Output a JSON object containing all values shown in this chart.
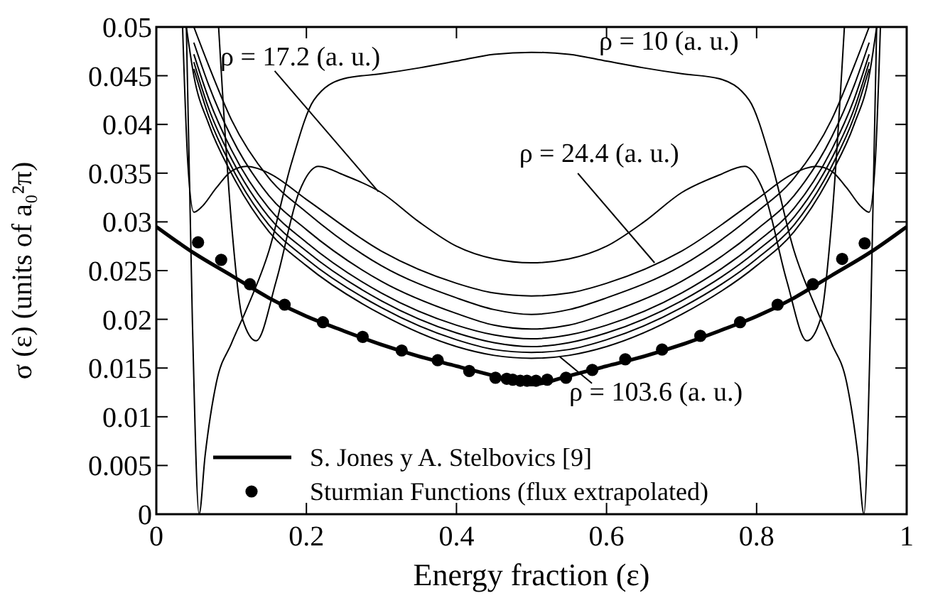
{
  "chart_data": {
    "type": "line",
    "xlabel": "Energy fraction (ε)",
    "ylabel": "σ (ε)  (units of a₀²π)",
    "xlim": [
      0,
      1
    ],
    "ylim": [
      0,
      0.05
    ],
    "xticks": [
      0,
      0.2,
      0.4,
      0.6,
      0.8,
      1
    ],
    "yticks": [
      0,
      0.005,
      0.01,
      0.015,
      0.02,
      0.025,
      0.03,
      0.035,
      0.04,
      0.045,
      0.05
    ],
    "grid": false,
    "legend": "bottom left",
    "series": [
      {
        "type": "line",
        "color": "#000000",
        "x": [
          0.05,
          0.07,
          0.1,
          0.15,
          0.2,
          0.3,
          0.4,
          0.45,
          0.5,
          0.55,
          0.6,
          0.7,
          0.8,
          0.85,
          0.9,
          0.93,
          0.95
        ],
        "values": [
          0.05,
          0.046,
          0.0405,
          0.0345,
          0.031,
          0.0255,
          0.0222,
          0.021,
          0.0205,
          0.021,
          0.0222,
          0.0255,
          0.031,
          0.0345,
          0.0405,
          0.046,
          0.05
        ]
      },
      {
        "type": "line",
        "color": "#000000",
        "x": [
          0.05,
          0.07,
          0.1,
          0.15,
          0.2,
          0.3,
          0.4,
          0.45,
          0.5,
          0.55,
          0.6,
          0.7,
          0.8,
          0.85,
          0.9,
          0.93,
          0.95
        ],
        "values": [
          0.0484,
          0.044,
          0.0387,
          0.0327,
          0.0292,
          0.0239,
          0.0206,
          0.0194,
          0.019,
          0.0194,
          0.0206,
          0.0239,
          0.0292,
          0.0327,
          0.0387,
          0.044,
          0.0484
        ]
      },
      {
        "type": "line",
        "color": "#000000",
        "x": [
          0.05,
          0.07,
          0.1,
          0.15,
          0.2,
          0.3,
          0.4,
          0.45,
          0.5,
          0.55,
          0.6,
          0.7,
          0.8,
          0.85,
          0.9,
          0.93,
          0.95
        ],
        "values": [
          0.0472,
          0.0426,
          0.0374,
          0.0314,
          0.0279,
          0.0227,
          0.0194,
          0.0184,
          0.018,
          0.0184,
          0.0194,
          0.0227,
          0.0279,
          0.0314,
          0.0374,
          0.0426,
          0.0472
        ]
      },
      {
        "type": "line",
        "color": "#000000",
        "x": [
          0.05,
          0.07,
          0.1,
          0.15,
          0.2,
          0.3,
          0.4,
          0.45,
          0.5,
          0.55,
          0.6,
          0.7,
          0.8,
          0.85,
          0.9,
          0.93,
          0.95
        ],
        "values": [
          0.0464,
          0.0416,
          0.0365,
          0.0305,
          0.027,
          0.0219,
          0.0186,
          0.0176,
          0.0172,
          0.0176,
          0.0186,
          0.0219,
          0.027,
          0.0305,
          0.0365,
          0.0416,
          0.0464
        ]
      },
      {
        "type": "line",
        "color": "#000000",
        "x": [
          0.05,
          0.07,
          0.1,
          0.15,
          0.2,
          0.3,
          0.4,
          0.45,
          0.5,
          0.55,
          0.6,
          0.7,
          0.8,
          0.85,
          0.9,
          0.93,
          0.95
        ],
        "values": [
          0.0457,
          0.0408,
          0.0357,
          0.0297,
          0.0262,
          0.0212,
          0.0179,
          0.0169,
          0.0166,
          0.0169,
          0.0179,
          0.0212,
          0.0262,
          0.0297,
          0.0357,
          0.0408,
          0.0457
        ]
      },
      {
        "type": "line",
        "color": "#000000",
        "x": [
          0.04,
          0.05,
          0.07,
          0.1,
          0.15,
          0.2,
          0.3,
          0.4,
          0.45,
          0.5,
          0.55,
          0.6,
          0.7,
          0.8,
          0.85,
          0.9,
          0.93,
          0.95,
          0.96
        ],
        "values": [
          0.05,
          0.045,
          0.04,
          0.035,
          0.029,
          0.0255,
          0.0205,
          0.0172,
          0.0163,
          0.016,
          0.0163,
          0.0172,
          0.0205,
          0.0255,
          0.029,
          0.035,
          0.04,
          0.045,
          0.05
        ]
      },
      {
        "type": "line",
        "color": "#000000",
        "x": [
          0.083,
          0.1,
          0.115,
          0.133,
          0.16,
          0.19,
          0.216,
          0.25,
          0.3,
          0.35,
          0.4,
          0.45,
          0.5,
          0.55,
          0.6,
          0.65,
          0.7,
          0.75,
          0.784,
          0.81,
          0.84,
          0.867,
          0.885,
          0.9,
          0.917
        ],
        "values": [
          0.05,
          0.03,
          0.02,
          0.0178,
          0.024,
          0.033,
          0.0357,
          0.0348,
          0.033,
          0.03,
          0.0275,
          0.0262,
          0.0258,
          0.0262,
          0.0275,
          0.03,
          0.033,
          0.0348,
          0.0357,
          0.033,
          0.024,
          0.0178,
          0.02,
          0.03,
          0.05
        ]
      },
      {
        "type": "line",
        "color": "#000000",
        "x": [
          0.035,
          0.042,
          0.05,
          0.06,
          0.08,
          0.1,
          0.12,
          0.15,
          0.2,
          0.3,
          0.4,
          0.45,
          0.5,
          0.55,
          0.6,
          0.7,
          0.8,
          0.85,
          0.88,
          0.9,
          0.92,
          0.94,
          0.95,
          0.958,
          0.965
        ],
        "values": [
          0.05,
          0.036,
          0.031,
          0.0315,
          0.0335,
          0.0352,
          0.0357,
          0.035,
          0.0323,
          0.027,
          0.0237,
          0.0227,
          0.0224,
          0.0227,
          0.0237,
          0.027,
          0.0323,
          0.035,
          0.0357,
          0.0352,
          0.0335,
          0.0315,
          0.031,
          0.036,
          0.05
        ]
      },
      {
        "type": "line",
        "color": "#000000",
        "x": [
          0.04,
          0.048,
          0.057,
          0.065,
          0.08,
          0.1,
          0.12,
          0.15,
          0.18,
          0.21,
          0.25,
          0.3,
          0.35,
          0.4,
          0.45,
          0.5,
          0.55,
          0.6,
          0.65,
          0.7,
          0.75,
          0.79,
          0.82,
          0.85,
          0.88,
          0.9,
          0.92,
          0.935,
          0.943,
          0.952,
          0.96
        ],
        "values": [
          0.05,
          0.02,
          0,
          0.006,
          0.0135,
          0.0175,
          0.021,
          0.027,
          0.036,
          0.0425,
          0.0447,
          0.0452,
          0.0458,
          0.0465,
          0.0472,
          0.0474,
          0.0472,
          0.0465,
          0.0458,
          0.0452,
          0.0447,
          0.0425,
          0.036,
          0.027,
          0.021,
          0.0175,
          0.0135,
          0.006,
          0,
          0.02,
          0.05
        ]
      },
      {
        "type": "line",
        "name": "S. Jones y A. Stelbovics [9]",
        "color": "#000000",
        "x": [
          0,
          0.05,
          0.1,
          0.15,
          0.2,
          0.25,
          0.3,
          0.35,
          0.4,
          0.45,
          0.5,
          0.55,
          0.6,
          0.65,
          0.7,
          0.75,
          0.8,
          0.85,
          0.9,
          0.95,
          1
        ],
        "values": [
          0.0295,
          0.0268,
          0.0245,
          0.0222,
          0.0203,
          0.0188,
          0.0174,
          0.0162,
          0.0152,
          0.0142,
          0.0133,
          0.0142,
          0.0152,
          0.0162,
          0.0174,
          0.0188,
          0.0203,
          0.0222,
          0.0245,
          0.0268,
          0.0295
        ]
      },
      {
        "type": "scatter",
        "name": "Sturmian Functions (flux extrapolated)",
        "color": "#000000",
        "marker": "circle",
        "x": [
          0.0556,
          0.0864,
          0.1247,
          0.171,
          0.222,
          0.275,
          0.327,
          0.375,
          0.417,
          0.452,
          0.467,
          0.475,
          0.485,
          0.494,
          0.506,
          0.521,
          0.546,
          0.581,
          0.625,
          0.674,
          0.725,
          0.778,
          0.828,
          0.875,
          0.914,
          0.944
        ],
        "values": [
          0.0279,
          0.0261,
          0.0236,
          0.0215,
          0.0197,
          0.0182,
          0.0168,
          0.0158,
          0.0147,
          0.014,
          0.0139,
          0.0138,
          0.0137,
          0.0137,
          0.0137,
          0.0138,
          0.014,
          0.0148,
          0.0159,
          0.0169,
          0.0183,
          0.0197,
          0.0215,
          0.0236,
          0.0262,
          0.0278
        ]
      }
    ],
    "annotations": [
      {
        "text": "ρ = 17.2 (a. u.)",
        "x": 0.296,
        "y": 0.0331
      },
      {
        "text": "ρ = 10 (a. u.)",
        "x": 0.63,
        "y": 0.0462
      },
      {
        "text": "ρ = 24.4 (a. u.)",
        "x": 0.664,
        "y": 0.0258
      },
      {
        "text": "ρ = 103.6 (a. u.)",
        "x": 0.537,
        "y": 0.0162
      }
    ]
  }
}
